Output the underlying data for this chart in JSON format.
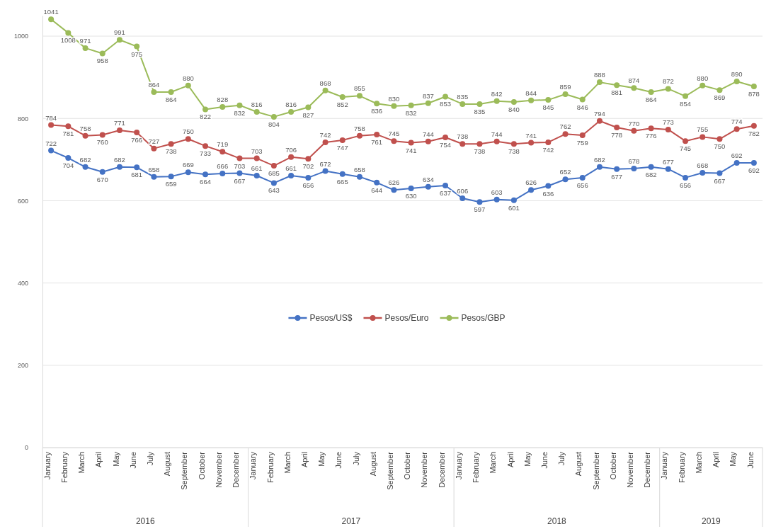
{
  "chart_data": {
    "type": "line",
    "categories": [
      "January",
      "February",
      "March",
      "April",
      "May",
      "June",
      "July",
      "August",
      "September",
      "October",
      "November",
      "December",
      "January",
      "February",
      "March",
      "April",
      "May",
      "June",
      "July",
      "August",
      "September",
      "October",
      "November",
      "December",
      "January",
      "February",
      "March",
      "April",
      "May",
      "June",
      "July",
      "August",
      "September",
      "October",
      "November",
      "December",
      "January",
      "February",
      "March",
      "April",
      "May",
      "June"
    ],
    "series": [
      {
        "name": "Pesos/US$",
        "color": "#4472c4",
        "values": [
          722,
          704,
          682,
          670,
          682,
          681,
          658,
          659,
          669,
          664,
          666,
          667,
          661,
          643,
          661,
          656,
          672,
          665,
          658,
          644,
          626,
          630,
          634,
          637,
          606,
          597,
          603,
          601,
          626,
          636,
          652,
          656,
          682,
          677,
          678,
          682,
          677,
          656,
          668,
          667,
          692,
          692
        ]
      },
      {
        "name": "Pesos/Euro",
        "color": "#c0504d",
        "values": [
          784,
          781,
          758,
          760,
          771,
          766,
          727,
          738,
          750,
          733,
          719,
          703,
          703,
          685,
          706,
          702,
          742,
          747,
          758,
          761,
          745,
          741,
          744,
          754,
          738,
          738,
          744,
          738,
          741,
          742,
          762,
          759,
          794,
          778,
          770,
          776,
          773,
          745,
          755,
          750,
          774,
          782
        ]
      },
      {
        "name": "Pesos/GBP",
        "color": "#9bbb59",
        "values": [
          1041,
          1008,
          971,
          958,
          991,
          975,
          864,
          864,
          880,
          822,
          828,
          832,
          816,
          804,
          816,
          827,
          868,
          852,
          855,
          836,
          830,
          832,
          837,
          853,
          835,
          835,
          842,
          840,
          844,
          845,
          859,
          846,
          888,
          881,
          874,
          864,
          872,
          854,
          880,
          869,
          890,
          878
        ]
      }
    ],
    "annotations": [
      "2016",
      "2017",
      "2018",
      "2019"
    ],
    "ylim": [
      0,
      1050
    ],
    "yticks": [
      0,
      200,
      400,
      600,
      800,
      1000
    ],
    "grid": "y",
    "legend": "center",
    "marker": "circle",
    "line_style": "solid",
    "data_labels": true
  }
}
